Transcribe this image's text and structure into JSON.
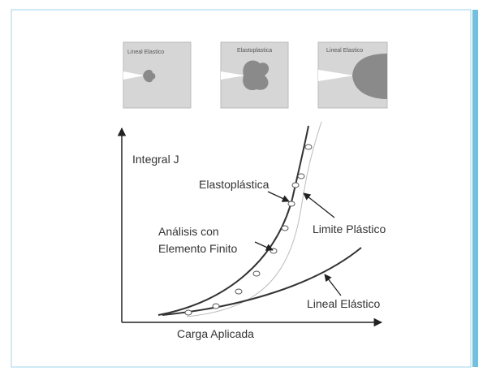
{
  "panels": [
    {
      "label": "Lineal Elastico"
    },
    {
      "label": "Elastoplastica"
    },
    {
      "label": "Lineal Elastico"
    }
  ],
  "axes": {
    "y_label": "Integral J",
    "x_label": "Carga Aplicada"
  },
  "annotations": {
    "elastoplastic": "Elastoplástica",
    "fea": [
      "Análisis con",
      "Elemento Finito"
    ],
    "plastic_limit": "Limite Plástico",
    "linear_elastic": "Lineal Elástico"
  }
}
